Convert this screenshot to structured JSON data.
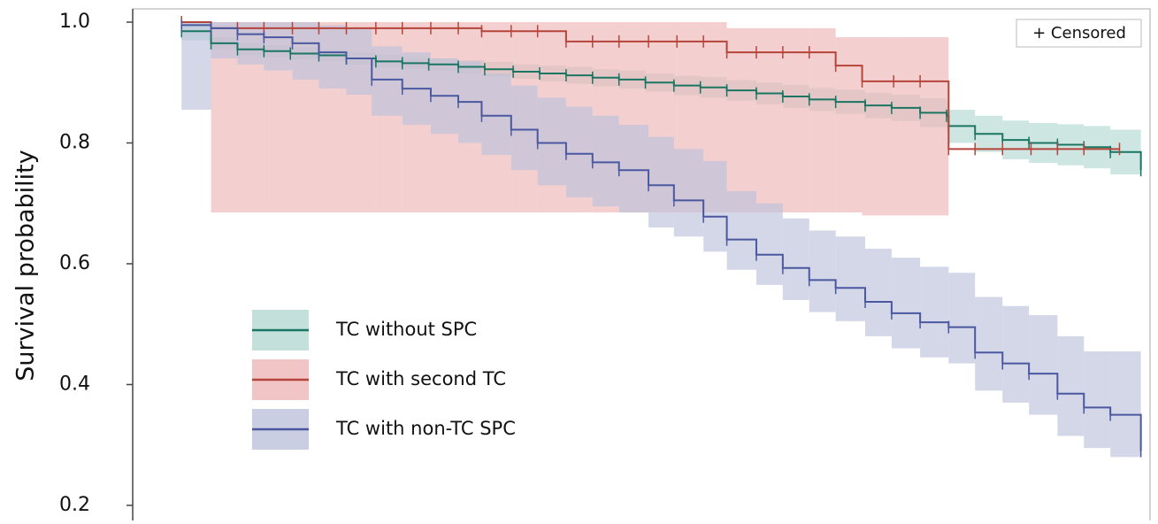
{
  "chart_data": {
    "type": "survival",
    "ylabel": "Survival probability",
    "censor_label": "+ Censored",
    "xlim": [
      0,
      100
    ],
    "ylim": [
      0.175,
      1.022
    ],
    "yticks": [
      {
        "value": 1.0,
        "label": "1.0"
      },
      0.8,
      0.6,
      0.4,
      0.2
    ],
    "series": [
      {
        "name": "TC without SPC",
        "color": "#1b7563",
        "band_color": "#b4d8d1",
        "x": [
          4.8,
          7.7,
          10.3,
          12.9,
          15.5,
          18.3,
          21.0,
          23.9,
          26.5,
          29.1,
          32.0,
          34.6,
          37.4,
          40.0,
          42.6,
          45.2,
          47.8,
          50.4,
          53.2,
          55.8,
          58.4,
          61.3,
          63.9,
          66.5,
          69.1,
          72.0,
          74.6,
          77.4,
          80.0,
          80.2,
          82.8,
          85.5,
          88.1,
          90.9,
          93.5,
          96.1,
          99.1
        ],
        "values": [
          0.985,
          0.965,
          0.955,
          0.952,
          0.948,
          0.945,
          0.94,
          0.935,
          0.932,
          0.93,
          0.926,
          0.922,
          0.918,
          0.915,
          0.912,
          0.908,
          0.905,
          0.9,
          0.895,
          0.892,
          0.887,
          0.882,
          0.877,
          0.872,
          0.868,
          0.862,
          0.858,
          0.85,
          0.845,
          0.828,
          0.815,
          0.805,
          0.8,
          0.797,
          0.793,
          0.785,
          0.755
        ],
        "lower": [
          0.97,
          0.955,
          0.945,
          0.942,
          0.938,
          0.935,
          0.93,
          0.925,
          0.922,
          0.92,
          0.915,
          0.91,
          0.906,
          0.902,
          0.898,
          0.894,
          0.89,
          0.885,
          0.879,
          0.875,
          0.87,
          0.864,
          0.858,
          0.853,
          0.848,
          0.841,
          0.836,
          0.826,
          0.82,
          0.8,
          0.785,
          0.773,
          0.767,
          0.763,
          0.758,
          0.748,
          0.74
        ],
        "upper": [
          1.0,
          0.975,
          0.965,
          0.962,
          0.958,
          0.955,
          0.95,
          0.945,
          0.942,
          0.94,
          0.937,
          0.934,
          0.93,
          0.928,
          0.926,
          0.922,
          0.92,
          0.915,
          0.911,
          0.909,
          0.904,
          0.9,
          0.896,
          0.891,
          0.888,
          0.883,
          0.88,
          0.874,
          0.87,
          0.855,
          0.845,
          0.837,
          0.833,
          0.831,
          0.828,
          0.822,
          0.8
        ]
      },
      {
        "name": "TC with second TC",
        "color": "#b5443a",
        "band_color": "#eeb6b6",
        "x": [
          4.8,
          7.7,
          10.3,
          12.9,
          15.7,
          18.3,
          21.0,
          23.9,
          26.5,
          29.3,
          32.0,
          34.3,
          37.2,
          39.8,
          42.6,
          45.2,
          47.8,
          50.7,
          53.5,
          56.1,
          58.4,
          61.3,
          63.9,
          66.5,
          69.1,
          71.7,
          74.8,
          77.4,
          80.2,
          82.8,
          85.5,
          88.3,
          90.9,
          93.5,
          97.0
        ],
        "values": [
          1.0,
          0.99,
          0.99,
          0.99,
          0.99,
          0.99,
          0.99,
          0.99,
          0.99,
          0.99,
          0.99,
          0.985,
          0.985,
          0.985,
          0.968,
          0.968,
          0.968,
          0.968,
          0.968,
          0.968,
          0.95,
          0.95,
          0.95,
          0.95,
          0.928,
          0.902,
          0.902,
          0.902,
          0.79,
          0.79,
          0.79,
          0.79,
          0.79,
          0.79,
          0.79
        ],
        "lower": [
          1.0,
          0.685,
          0.685,
          0.685,
          0.685,
          0.685,
          0.685,
          0.685,
          0.685,
          0.685,
          0.685,
          0.685,
          0.685,
          0.685,
          0.685,
          0.685,
          0.685,
          0.685,
          0.685,
          0.685,
          0.685,
          0.685,
          0.685,
          0.685,
          0.685,
          0.68,
          0.68,
          0.68,
          0.79,
          0.79,
          0.79,
          0.79,
          0.79,
          0.79,
          0.79
        ],
        "upper": [
          1.0,
          1.0,
          1.0,
          1.0,
          1.0,
          1.0,
          1.0,
          1.0,
          1.0,
          1.0,
          1.0,
          1.0,
          1.0,
          1.0,
          1.0,
          1.0,
          1.0,
          1.0,
          1.0,
          1.0,
          0.99,
          0.99,
          0.99,
          0.99,
          0.975,
          0.975,
          0.975,
          0.975,
          0.79,
          0.79,
          0.79,
          0.79,
          0.79,
          0.79,
          0.79
        ]
      },
      {
        "name": "TC with non-TC SPC",
        "color": "#4a58a0",
        "band_color": "#bcc2dc",
        "x": [
          4.8,
          7.7,
          10.3,
          12.9,
          15.7,
          18.3,
          21.0,
          23.5,
          26.5,
          29.3,
          32.0,
          34.3,
          37.2,
          39.8,
          42.6,
          45.2,
          47.8,
          50.7,
          53.2,
          56.1,
          58.4,
          61.3,
          63.9,
          66.5,
          69.1,
          72.0,
          74.6,
          77.4,
          80.2,
          82.8,
          85.5,
          88.1,
          90.9,
          93.5,
          96.1,
          99.1
        ],
        "values": [
          0.995,
          0.99,
          0.98,
          0.975,
          0.965,
          0.95,
          0.94,
          0.905,
          0.89,
          0.878,
          0.868,
          0.845,
          0.822,
          0.8,
          0.782,
          0.768,
          0.755,
          0.73,
          0.705,
          0.678,
          0.64,
          0.615,
          0.593,
          0.573,
          0.56,
          0.537,
          0.518,
          0.503,
          0.495,
          0.453,
          0.435,
          0.418,
          0.385,
          0.362,
          0.35,
          0.29
        ],
        "lower": [
          0.855,
          0.94,
          0.93,
          0.92,
          0.905,
          0.89,
          0.88,
          0.845,
          0.83,
          0.815,
          0.8,
          0.78,
          0.755,
          0.73,
          0.71,
          0.695,
          0.685,
          0.66,
          0.645,
          0.62,
          0.59,
          0.565,
          0.54,
          0.52,
          0.505,
          0.48,
          0.46,
          0.445,
          0.435,
          0.39,
          0.37,
          0.35,
          0.315,
          0.295,
          0.28,
          0.25
        ],
        "upper": [
          1.0,
          1.0,
          1.0,
          1.0,
          1.0,
          0.995,
          0.99,
          0.96,
          0.95,
          0.94,
          0.935,
          0.915,
          0.895,
          0.875,
          0.86,
          0.845,
          0.83,
          0.81,
          0.79,
          0.77,
          0.72,
          0.7,
          0.675,
          0.655,
          0.645,
          0.625,
          0.61,
          0.595,
          0.585,
          0.545,
          0.53,
          0.515,
          0.48,
          0.455,
          0.455,
          0.455
        ]
      }
    ]
  }
}
